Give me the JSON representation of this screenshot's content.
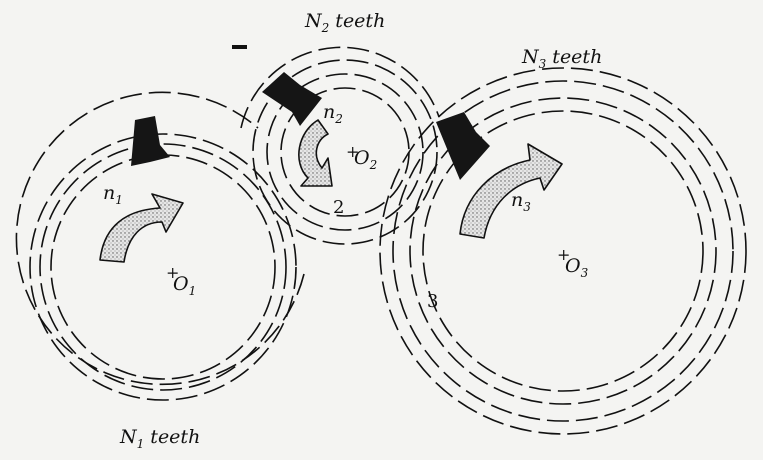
{
  "gears": [
    {
      "id": "gear-1",
      "teeth_label": {
        "main": "N",
        "sub": "1",
        "tail": " teeth"
      },
      "speed_label": {
        "main": "n",
        "sub": "1"
      },
      "center_label": {
        "main": "O",
        "sub": "1"
      },
      "rotation": "clockwise"
    },
    {
      "id": "gear-2",
      "teeth_label": {
        "main": "N",
        "sub": "2",
        "tail": " teeth"
      },
      "speed_label": {
        "main": "n",
        "sub": "2"
      },
      "center_label": {
        "main": "O",
        "sub": "2"
      },
      "number": "2",
      "rotation": "counterclockwise"
    },
    {
      "id": "gear-3",
      "teeth_label": {
        "main": "N",
        "sub": "3",
        "tail": " teeth"
      },
      "speed_label": {
        "main": "n",
        "sub": "3"
      },
      "center_label": {
        "main": "O",
        "sub": "3"
      },
      "number": "3",
      "rotation": "clockwise"
    }
  ],
  "colors": {
    "ink": "#111111",
    "arrow_fill": "#d8d8d8",
    "background": "#f4f4f2"
  }
}
